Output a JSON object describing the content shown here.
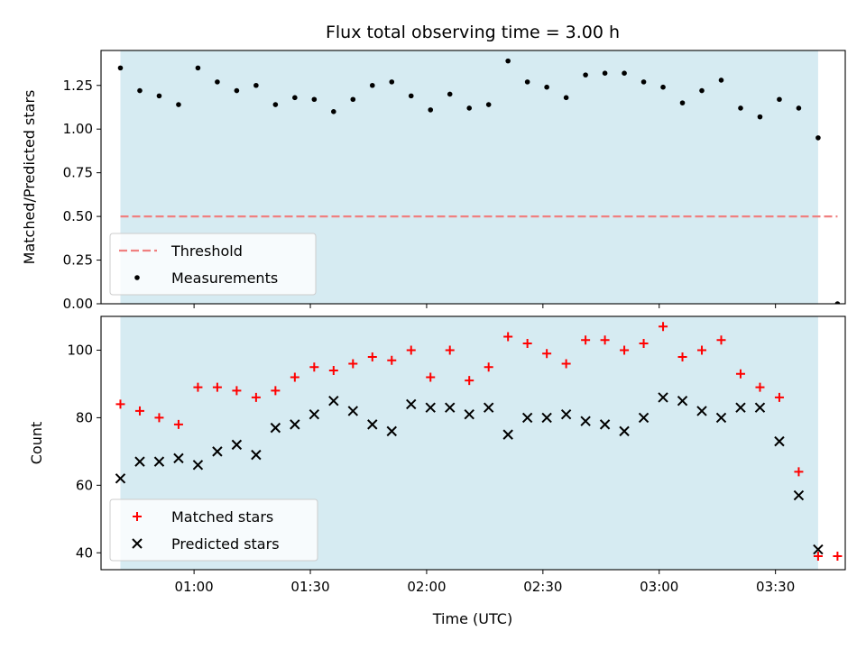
{
  "figure": {
    "title": "Flux total observing time = 3.00 h",
    "xlabel": "Time (UTC)",
    "x_ticks": [
      "01:00",
      "01:30",
      "02:00",
      "02:30",
      "03:00",
      "03:30"
    ],
    "observing_window": {
      "start": "00:41",
      "end": "03:41",
      "color": "#add8e6"
    }
  },
  "chart_data": [
    {
      "type": "scatter",
      "ylabel": "Matched/Predicted stars",
      "xlim": [
        "00:36",
        "03:48"
      ],
      "ylim": [
        0,
        1.45
      ],
      "y_ticks": [
        "0.00",
        "0.25",
        "0.50",
        "0.75",
        "1.00",
        "1.25"
      ],
      "legend": {
        "placement": "lower-left",
        "entries": [
          "Threshold",
          "Measurements"
        ]
      },
      "threshold": {
        "name": "Threshold",
        "value": 0.5,
        "x_range": [
          "00:41",
          "03:46"
        ],
        "color": "#f08080",
        "style": "dashed"
      },
      "series": [
        {
          "name": "Measurements",
          "marker": "dot",
          "color": "#000000",
          "x": [
            "00:41",
            "00:46",
            "00:51",
            "00:56",
            "01:01",
            "01:06",
            "01:11",
            "01:16",
            "01:21",
            "01:26",
            "01:31",
            "01:36",
            "01:41",
            "01:46",
            "01:51",
            "01:56",
            "02:01",
            "02:06",
            "02:11",
            "02:16",
            "02:21",
            "02:26",
            "02:31",
            "02:36",
            "02:41",
            "02:46",
            "02:51",
            "02:56",
            "03:01",
            "03:06",
            "03:11",
            "03:16",
            "03:21",
            "03:26",
            "03:31",
            "03:36",
            "03:41",
            "03:46"
          ],
          "y": [
            1.35,
            1.22,
            1.19,
            1.14,
            1.35,
            1.27,
            1.22,
            1.25,
            1.14,
            1.18,
            1.17,
            1.1,
            1.17,
            1.25,
            1.27,
            1.19,
            1.11,
            1.2,
            1.12,
            1.14,
            1.39,
            1.27,
            1.24,
            1.18,
            1.31,
            1.32,
            1.32,
            1.27,
            1.24,
            1.15,
            1.22,
            1.28,
            1.12,
            1.07,
            1.17,
            1.12,
            0.95,
            0.0
          ]
        }
      ]
    },
    {
      "type": "scatter",
      "ylabel": "Count",
      "xlim": [
        "00:36",
        "03:48"
      ],
      "ylim": [
        35,
        110
      ],
      "y_ticks": [
        "40",
        "60",
        "80",
        "100"
      ],
      "legend": {
        "placement": "lower-left",
        "entries": [
          "Matched stars",
          "Predicted stars"
        ]
      },
      "series": [
        {
          "name": "Matched stars",
          "marker": "plus",
          "color": "#ff0000",
          "x": [
            "00:41",
            "00:46",
            "00:51",
            "00:56",
            "01:01",
            "01:06",
            "01:11",
            "01:16",
            "01:21",
            "01:26",
            "01:31",
            "01:36",
            "01:41",
            "01:46",
            "01:51",
            "01:56",
            "02:01",
            "02:06",
            "02:11",
            "02:16",
            "02:21",
            "02:26",
            "02:31",
            "02:36",
            "02:41",
            "02:46",
            "02:51",
            "02:56",
            "03:01",
            "03:06",
            "03:11",
            "03:16",
            "03:21",
            "03:26",
            "03:31",
            "03:36",
            "03:41",
            "03:46"
          ],
          "y": [
            84,
            82,
            80,
            78,
            89,
            89,
            88,
            86,
            88,
            92,
            95,
            94,
            96,
            98,
            97,
            100,
            92,
            100,
            91,
            95,
            104,
            102,
            99,
            96,
            103,
            103,
            100,
            102,
            107,
            98,
            100,
            103,
            93,
            89,
            86,
            64,
            39,
            39
          ]
        },
        {
          "name": "Predicted stars",
          "marker": "x",
          "color": "#000000",
          "x": [
            "00:41",
            "00:46",
            "00:51",
            "00:56",
            "01:01",
            "01:06",
            "01:11",
            "01:16",
            "01:21",
            "01:26",
            "01:31",
            "01:36",
            "01:41",
            "01:46",
            "01:51",
            "01:56",
            "02:01",
            "02:06",
            "02:11",
            "02:16",
            "02:21",
            "02:26",
            "02:31",
            "02:36",
            "02:41",
            "02:46",
            "02:51",
            "02:56",
            "03:01",
            "03:06",
            "03:11",
            "03:16",
            "03:21",
            "03:26",
            "03:31",
            "03:36",
            "03:41"
          ],
          "y": [
            62,
            67,
            67,
            68,
            66,
            70,
            72,
            69,
            77,
            78,
            81,
            85,
            82,
            78,
            76,
            84,
            83,
            83,
            81,
            83,
            75,
            80,
            80,
            81,
            79,
            78,
            76,
            80,
            86,
            85,
            82,
            80,
            83,
            83,
            73,
            57,
            41
          ]
        }
      ]
    }
  ]
}
